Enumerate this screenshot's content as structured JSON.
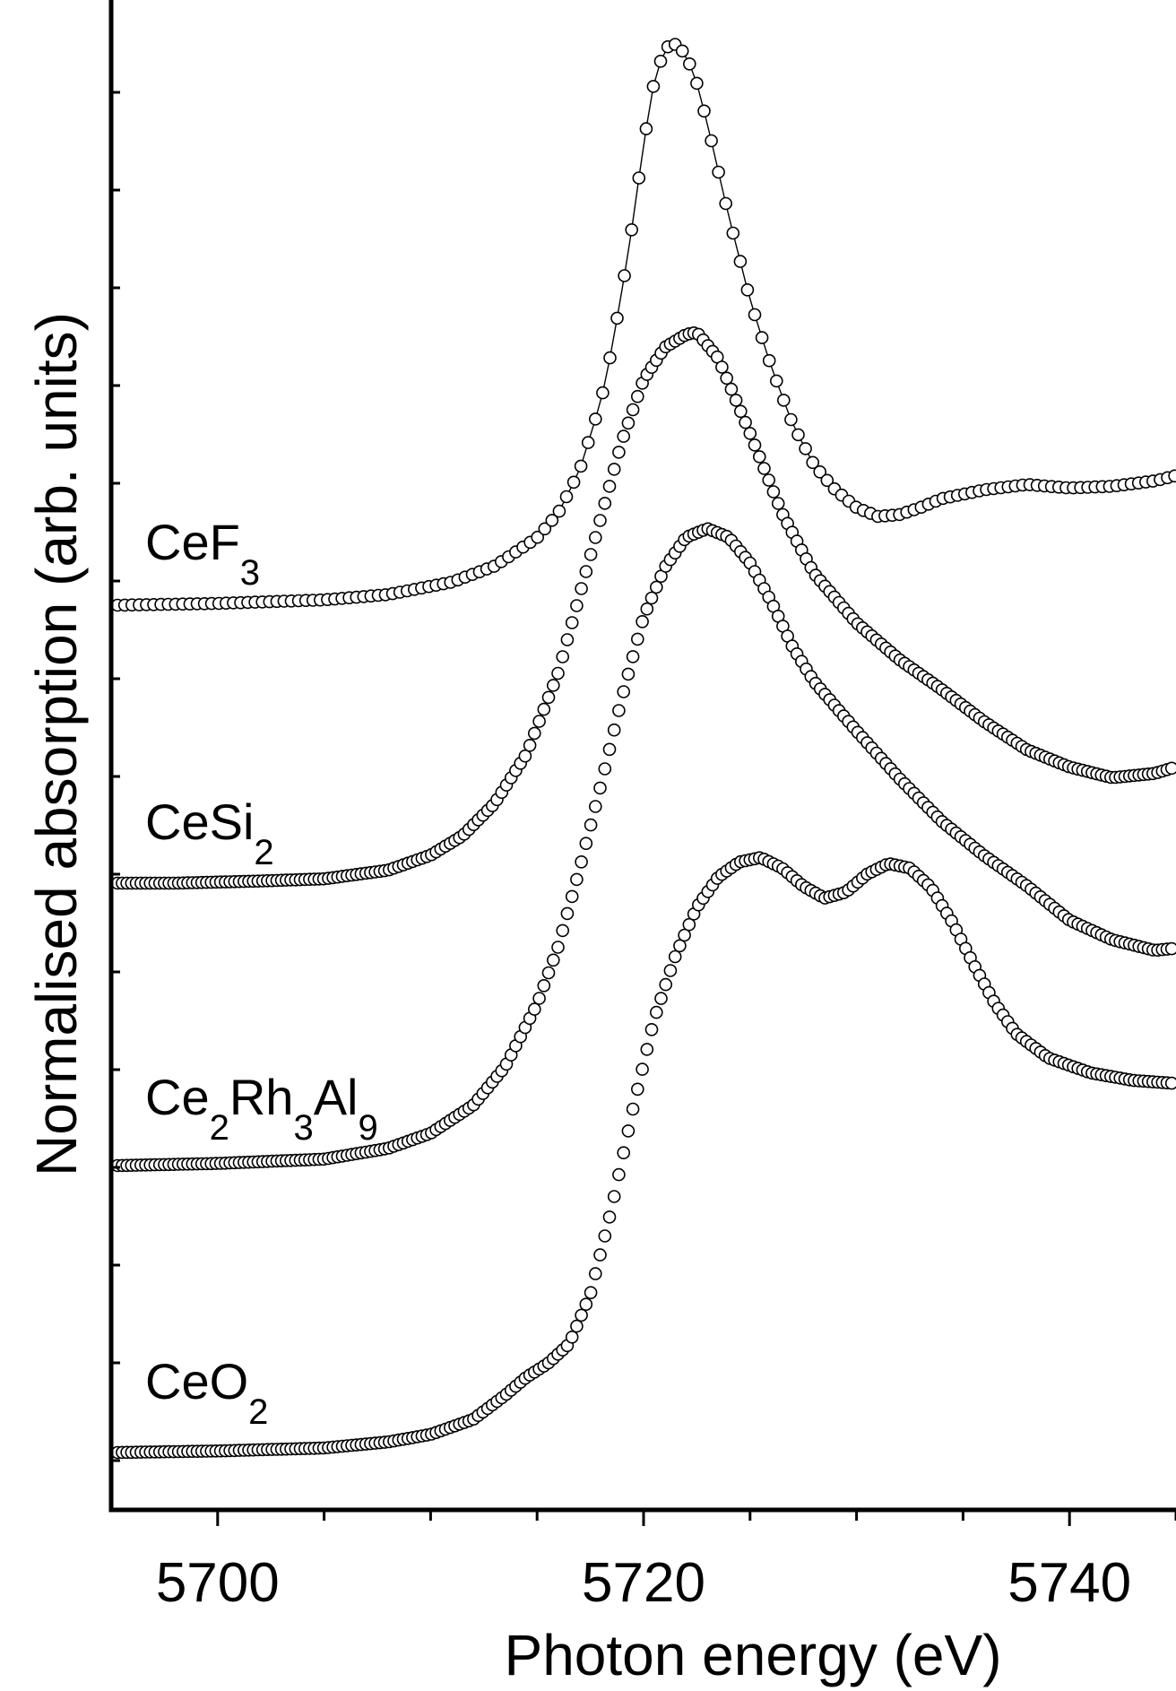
{
  "chart_data": {
    "type": "scatter",
    "xlabel": "Photon energy (eV)",
    "ylabel": "Normalised absorption (arb. units)",
    "xlim": [
      5695,
      5745
    ],
    "x_ticks": [
      5700,
      5720,
      5740
    ],
    "y_ticks_shown": false,
    "marker": "open-circle",
    "series": [
      {
        "label_parts": [
          {
            "t": "CeF"
          },
          {
            "t": "3",
            "sub": true
          }
        ],
        "connected": true,
        "points": [
          [
            5695.3,
            0.0
          ],
          [
            5700,
            0.01
          ],
          [
            5705,
            0.03
          ],
          [
            5708,
            0.06
          ],
          [
            5711,
            0.13
          ],
          [
            5713,
            0.22
          ],
          [
            5715,
            0.38
          ],
          [
            5716,
            0.52
          ],
          [
            5717,
            0.76
          ],
          [
            5718,
            1.15
          ],
          [
            5718.5,
            1.44
          ],
          [
            5719,
            1.78
          ],
          [
            5719.5,
            2.16
          ],
          [
            5720,
            2.6
          ],
          [
            5720.5,
            2.95
          ],
          [
            5721,
            3.14
          ],
          [
            5721.5,
            3.16
          ],
          [
            5722,
            3.1
          ],
          [
            5722.5,
            2.94
          ],
          [
            5723,
            2.71
          ],
          [
            5724,
            2.19
          ],
          [
            5725,
            1.72
          ],
          [
            5726,
            1.34
          ],
          [
            5727,
            1.02
          ],
          [
            5728,
            0.79
          ],
          [
            5729,
            0.65
          ],
          [
            5730,
            0.55
          ],
          [
            5731,
            0.5
          ],
          [
            5732,
            0.51
          ],
          [
            5733,
            0.55
          ],
          [
            5734,
            0.6
          ],
          [
            5736,
            0.65
          ],
          [
            5738,
            0.68
          ],
          [
            5740,
            0.66
          ],
          [
            5742,
            0.67
          ],
          [
            5744,
            0.7
          ],
          [
            5745,
            0.73
          ]
        ]
      },
      {
        "label_parts": [
          {
            "t": "CeSi"
          },
          {
            "t": "2",
            "sub": true
          }
        ],
        "connected": false,
        "points": [
          [
            5695.3,
            0.0
          ],
          [
            5698,
            0.0
          ],
          [
            5702,
            0.01
          ],
          [
            5705,
            0.02
          ],
          [
            5708,
            0.06
          ],
          [
            5710,
            0.13
          ],
          [
            5711.5,
            0.22
          ],
          [
            5713,
            0.37
          ],
          [
            5714.5,
            0.6
          ],
          [
            5716,
            0.98
          ],
          [
            5717.5,
            1.52
          ],
          [
            5719,
            2.06
          ],
          [
            5720,
            2.34
          ],
          [
            5721,
            2.49
          ],
          [
            5722,
            2.55
          ],
          [
            5722.5,
            2.56
          ],
          [
            5723.5,
            2.44
          ],
          [
            5725,
            2.09
          ],
          [
            5726.5,
            1.72
          ],
          [
            5728,
            1.44
          ],
          [
            5730,
            1.21
          ],
          [
            5732,
            1.04
          ],
          [
            5734,
            0.9
          ],
          [
            5736,
            0.75
          ],
          [
            5738,
            0.62
          ],
          [
            5740,
            0.54
          ],
          [
            5742,
            0.49
          ],
          [
            5744,
            0.51
          ],
          [
            5745,
            0.54
          ]
        ]
      },
      {
        "label_parts": [
          {
            "t": "Ce"
          },
          {
            "t": "2",
            "sub": true
          },
          {
            "t": "Rh"
          },
          {
            "t": "3",
            "sub": true
          },
          {
            "t": "Al"
          },
          {
            "t": "9",
            "sub": true
          }
        ],
        "connected": false,
        "points": [
          [
            5695.3,
            0.0
          ],
          [
            5700,
            0.01
          ],
          [
            5705,
            0.03
          ],
          [
            5708,
            0.08
          ],
          [
            5710,
            0.15
          ],
          [
            5712,
            0.28
          ],
          [
            5713.5,
            0.46
          ],
          [
            5715,
            0.75
          ],
          [
            5716,
            1.02
          ],
          [
            5717,
            1.38
          ],
          [
            5718,
            1.77
          ],
          [
            5719,
            2.18
          ],
          [
            5720,
            2.55
          ],
          [
            5721,
            2.78
          ],
          [
            5722,
            2.92
          ],
          [
            5723,
            2.96
          ],
          [
            5724,
            2.92
          ],
          [
            5725,
            2.8
          ],
          [
            5726,
            2.62
          ],
          [
            5727,
            2.41
          ],
          [
            5728,
            2.25
          ],
          [
            5730,
            2.02
          ],
          [
            5732,
            1.8
          ],
          [
            5734,
            1.6
          ],
          [
            5736,
            1.44
          ],
          [
            5738,
            1.3
          ],
          [
            5740,
            1.14
          ],
          [
            5742,
            1.05
          ],
          [
            5744,
            1.0
          ],
          [
            5745,
            1.01
          ]
        ]
      },
      {
        "label_parts": [
          {
            "t": "CeO"
          },
          {
            "t": "2",
            "sub": true
          }
        ],
        "connected": false,
        "points": [
          [
            5695.3,
            0.0
          ],
          [
            5700,
            0.01
          ],
          [
            5705,
            0.03
          ],
          [
            5708,
            0.07
          ],
          [
            5710,
            0.12
          ],
          [
            5712,
            0.22
          ],
          [
            5713.5,
            0.38
          ],
          [
            5714.5,
            0.5
          ],
          [
            5715.5,
            0.59
          ],
          [
            5716.5,
            0.72
          ],
          [
            5717.5,
            1.05
          ],
          [
            5718.5,
            1.62
          ],
          [
            5719.5,
            2.28
          ],
          [
            5720.5,
            2.88
          ],
          [
            5721.5,
            3.3
          ],
          [
            5722.5,
            3.62
          ],
          [
            5723.5,
            3.82
          ],
          [
            5724.5,
            3.92
          ],
          [
            5725.5,
            3.95
          ],
          [
            5726.5,
            3.88
          ],
          [
            5727.5,
            3.76
          ],
          [
            5728.5,
            3.68
          ],
          [
            5729.5,
            3.72
          ],
          [
            5730.5,
            3.84
          ],
          [
            5731.5,
            3.91
          ],
          [
            5732.5,
            3.88
          ],
          [
            5733.5,
            3.75
          ],
          [
            5734.5,
            3.52
          ],
          [
            5735.5,
            3.24
          ],
          [
            5736.5,
            2.98
          ],
          [
            5737.5,
            2.78
          ],
          [
            5739,
            2.62
          ],
          [
            5741,
            2.52
          ],
          [
            5743,
            2.47
          ],
          [
            5745,
            2.45
          ]
        ]
      }
    ]
  }
}
